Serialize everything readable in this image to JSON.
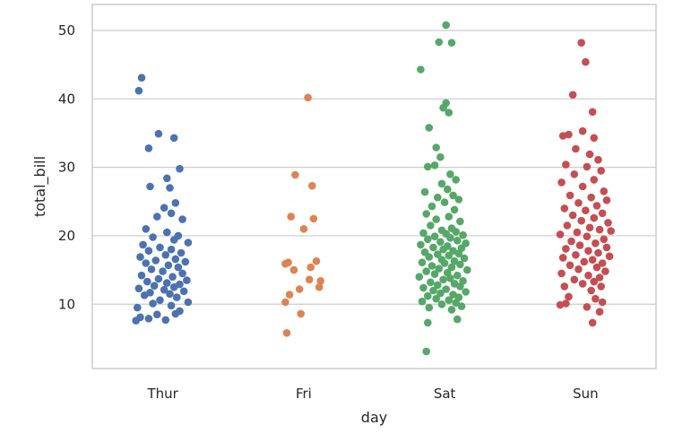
{
  "chart_data": {
    "type": "scatter",
    "title": "",
    "xlabel": "day",
    "ylabel": "total_bill",
    "categories": [
      "Thur",
      "Fri",
      "Sat",
      "Sun"
    ],
    "y_ticks": [
      10,
      20,
      30,
      40,
      50
    ],
    "ylim": [
      0.6,
      53.8
    ],
    "grid": "horizontal",
    "legend": "none",
    "series": [
      {
        "category": "Thur",
        "color": "#4c72b0",
        "points": [
          {
            "x": -0.15,
            "y": 43.1
          },
          {
            "x": -0.17,
            "y": 41.2
          },
          {
            "x": -0.03,
            "y": 34.9
          },
          {
            "x": 0.08,
            "y": 34.3
          },
          {
            "x": -0.1,
            "y": 32.8
          },
          {
            "x": 0.12,
            "y": 29.8
          },
          {
            "x": 0.03,
            "y": 28.4
          },
          {
            "x": -0.09,
            "y": 27.2
          },
          {
            "x": 0.05,
            "y": 27.0
          },
          {
            "x": 0.09,
            "y": 24.8
          },
          {
            "x": 0.01,
            "y": 24.1
          },
          {
            "x": 0.06,
            "y": 23.3
          },
          {
            "x": -0.04,
            "y": 22.8
          },
          {
            "x": 0.14,
            "y": 22.4
          },
          {
            "x": -0.12,
            "y": 21.0
          },
          {
            "x": 0.03,
            "y": 20.5
          },
          {
            "x": 0.11,
            "y": 20.0
          },
          {
            "x": -0.07,
            "y": 19.8
          },
          {
            "x": 0.08,
            "y": 19.4
          },
          {
            "x": 0.18,
            "y": 19.0
          },
          {
            "x": -0.14,
            "y": 18.7
          },
          {
            "x": -0.02,
            "y": 18.3
          },
          {
            "x": 0.06,
            "y": 18.0
          },
          {
            "x": -0.1,
            "y": 17.8
          },
          {
            "x": 0.13,
            "y": 17.5
          },
          {
            "x": 0.02,
            "y": 17.2
          },
          {
            "x": -0.16,
            "y": 16.9
          },
          {
            "x": 0.09,
            "y": 16.6
          },
          {
            "x": -0.05,
            "y": 16.4
          },
          {
            "x": 0.16,
            "y": 16.2
          },
          {
            "x": -0.12,
            "y": 16.0
          },
          {
            "x": 0.04,
            "y": 15.7
          },
          {
            "x": 0.11,
            "y": 15.4
          },
          {
            "x": -0.08,
            "y": 15.1
          },
          {
            "x": 0.0,
            "y": 14.8
          },
          {
            "x": 0.14,
            "y": 14.5
          },
          {
            "x": -0.15,
            "y": 14.2
          },
          {
            "x": 0.07,
            "y": 14.0
          },
          {
            "x": -0.03,
            "y": 13.7
          },
          {
            "x": 0.17,
            "y": 13.5
          },
          {
            "x": -0.11,
            "y": 13.3
          },
          {
            "x": 0.03,
            "y": 13.1
          },
          {
            "x": 0.12,
            "y": 12.9
          },
          {
            "x": -0.06,
            "y": 12.7
          },
          {
            "x": 0.08,
            "y": 12.5
          },
          {
            "x": -0.17,
            "y": 12.3
          },
          {
            "x": 0.01,
            "y": 12.1
          },
          {
            "x": 0.15,
            "y": 11.9
          },
          {
            "x": -0.09,
            "y": 11.7
          },
          {
            "x": 0.05,
            "y": 11.5
          },
          {
            "x": -0.13,
            "y": 11.3
          },
          {
            "x": 0.1,
            "y": 11.0
          },
          {
            "x": -0.02,
            "y": 10.6
          },
          {
            "x": 0.18,
            "y": 10.3
          },
          {
            "x": -0.07,
            "y": 10.1
          },
          {
            "x": 0.06,
            "y": 9.8
          },
          {
            "x": -0.18,
            "y": 9.5
          },
          {
            "x": 0.12,
            "y": 9.0
          },
          {
            "x": -0.04,
            "y": 8.5
          },
          {
            "x": 0.09,
            "y": 8.6
          },
          {
            "x": -0.16,
            "y": 8.1
          },
          {
            "x": -0.1,
            "y": 7.9
          },
          {
            "x": 0.02,
            "y": 7.7
          },
          {
            "x": -0.19,
            "y": 7.6
          }
        ]
      },
      {
        "category": "Fri",
        "color": "#dd8452",
        "points": [
          {
            "x": 0.03,
            "y": 40.2
          },
          {
            "x": -0.06,
            "y": 28.9
          },
          {
            "x": 0.06,
            "y": 27.3
          },
          {
            "x": -0.09,
            "y": 22.8
          },
          {
            "x": 0.07,
            "y": 22.5
          },
          {
            "x": 0.0,
            "y": 21.0
          },
          {
            "x": -0.11,
            "y": 16.1
          },
          {
            "x": -0.13,
            "y": 15.9
          },
          {
            "x": 0.09,
            "y": 16.3
          },
          {
            "x": 0.05,
            "y": 15.4
          },
          {
            "x": -0.07,
            "y": 15.0
          },
          {
            "x": 0.04,
            "y": 13.6
          },
          {
            "x": 0.12,
            "y": 13.4
          },
          {
            "x": 0.11,
            "y": 12.5
          },
          {
            "x": -0.03,
            "y": 12.2
          },
          {
            "x": -0.1,
            "y": 11.4
          },
          {
            "x": -0.13,
            "y": 10.3
          },
          {
            "x": -0.02,
            "y": 8.6
          },
          {
            "x": -0.12,
            "y": 5.8
          }
        ]
      },
      {
        "category": "Sat",
        "color": "#55a868",
        "points": [
          {
            "x": 0.01,
            "y": 50.8
          },
          {
            "x": -0.04,
            "y": 48.3
          },
          {
            "x": 0.05,
            "y": 48.2
          },
          {
            "x": -0.17,
            "y": 44.3
          },
          {
            "x": 0.01,
            "y": 39.4
          },
          {
            "x": -0.01,
            "y": 38.7
          },
          {
            "x": 0.03,
            "y": 38.0
          },
          {
            "x": -0.11,
            "y": 35.8
          },
          {
            "x": -0.06,
            "y": 32.9
          },
          {
            "x": -0.03,
            "y": 31.5
          },
          {
            "x": -0.12,
            "y": 30.1
          },
          {
            "x": -0.07,
            "y": 30.3
          },
          {
            "x": 0.04,
            "y": 29.0
          },
          {
            "x": 0.08,
            "y": 28.2
          },
          {
            "x": -0.02,
            "y": 27.6
          },
          {
            "x": 0.02,
            "y": 26.8
          },
          {
            "x": -0.14,
            "y": 26.4
          },
          {
            "x": 0.06,
            "y": 25.9
          },
          {
            "x": -0.05,
            "y": 25.6
          },
          {
            "x": 0.1,
            "y": 25.3
          },
          {
            "x": 0.0,
            "y": 24.9
          },
          {
            "x": -0.09,
            "y": 24.3
          },
          {
            "x": 0.07,
            "y": 23.8
          },
          {
            "x": -0.13,
            "y": 23.2
          },
          {
            "x": 0.03,
            "y": 22.8
          },
          {
            "x": -0.06,
            "y": 22.4
          },
          {
            "x": 0.11,
            "y": 22.1
          },
          {
            "x": -0.1,
            "y": 21.5
          },
          {
            "x": 0.05,
            "y": 21.1
          },
          {
            "x": -0.02,
            "y": 20.8
          },
          {
            "x": 0.08,
            "y": 20.6
          },
          {
            "x": -0.15,
            "y": 20.4
          },
          {
            "x": 0.01,
            "y": 20.3
          },
          {
            "x": 0.13,
            "y": 20.1
          },
          {
            "x": -0.07,
            "y": 19.9
          },
          {
            "x": 0.04,
            "y": 19.7
          },
          {
            "x": -0.12,
            "y": 19.5
          },
          {
            "x": 0.09,
            "y": 19.3
          },
          {
            "x": -0.03,
            "y": 19.1
          },
          {
            "x": 0.15,
            "y": 18.9
          },
          {
            "x": -0.17,
            "y": 18.7
          },
          {
            "x": 0.02,
            "y": 18.5
          },
          {
            "x": -0.08,
            "y": 18.3
          },
          {
            "x": 0.12,
            "y": 18.2
          },
          {
            "x": -0.01,
            "y": 18.0
          },
          {
            "x": 0.06,
            "y": 17.8
          },
          {
            "x": -0.14,
            "y": 17.6
          },
          {
            "x": 0.1,
            "y": 17.4
          },
          {
            "x": -0.05,
            "y": 17.3
          },
          {
            "x": 0.03,
            "y": 17.1
          },
          {
            "x": -0.11,
            "y": 16.9
          },
          {
            "x": 0.14,
            "y": 16.7
          },
          {
            "x": -0.02,
            "y": 16.5
          },
          {
            "x": 0.07,
            "y": 16.3
          },
          {
            "x": -0.16,
            "y": 16.1
          },
          {
            "x": 0.0,
            "y": 16.0
          },
          {
            "x": 0.11,
            "y": 15.8
          },
          {
            "x": -0.09,
            "y": 15.6
          },
          {
            "x": 0.05,
            "y": 15.4
          },
          {
            "x": -0.04,
            "y": 15.2
          },
          {
            "x": 0.16,
            "y": 15.0
          },
          {
            "x": -0.13,
            "y": 14.8
          },
          {
            "x": 0.02,
            "y": 14.6
          },
          {
            "x": -0.07,
            "y": 14.4
          },
          {
            "x": 0.09,
            "y": 14.2
          },
          {
            "x": -0.18,
            "y": 14.0
          },
          {
            "x": 0.04,
            "y": 13.8
          },
          {
            "x": -0.01,
            "y": 13.6
          },
          {
            "x": 0.13,
            "y": 13.4
          },
          {
            "x": -0.1,
            "y": 13.2
          },
          {
            "x": 0.07,
            "y": 13.0
          },
          {
            "x": -0.05,
            "y": 12.8
          },
          {
            "x": 0.11,
            "y": 12.6
          },
          {
            "x": -0.15,
            "y": 12.4
          },
          {
            "x": 0.01,
            "y": 12.2
          },
          {
            "x": -0.08,
            "y": 12.0
          },
          {
            "x": 0.15,
            "y": 11.8
          },
          {
            "x": -0.03,
            "y": 11.6
          },
          {
            "x": 0.06,
            "y": 11.4
          },
          {
            "x": -0.12,
            "y": 11.2
          },
          {
            "x": 0.1,
            "y": 11.0
          },
          {
            "x": -0.06,
            "y": 10.8
          },
          {
            "x": 0.03,
            "y": 10.6
          },
          {
            "x": -0.16,
            "y": 10.4
          },
          {
            "x": 0.08,
            "y": 10.2
          },
          {
            "x": -0.02,
            "y": 10.0
          },
          {
            "x": 0.12,
            "y": 9.7
          },
          {
            "x": -0.11,
            "y": 9.5
          },
          {
            "x": 0.05,
            "y": 9.2
          },
          {
            "x": 0.09,
            "y": 7.8
          },
          {
            "x": -0.12,
            "y": 7.3
          },
          {
            "x": -0.13,
            "y": 3.1
          }
        ]
      },
      {
        "category": "Sun",
        "color": "#c44e52",
        "points": [
          {
            "x": -0.03,
            "y": 48.2
          },
          {
            "x": 0.0,
            "y": 45.4
          },
          {
            "x": -0.09,
            "y": 40.6
          },
          {
            "x": 0.05,
            "y": 38.1
          },
          {
            "x": -0.02,
            "y": 35.3
          },
          {
            "x": -0.12,
            "y": 34.8
          },
          {
            "x": -0.16,
            "y": 34.6
          },
          {
            "x": 0.06,
            "y": 34.3
          },
          {
            "x": -0.07,
            "y": 32.7
          },
          {
            "x": 0.03,
            "y": 31.9
          },
          {
            "x": 0.09,
            "y": 31.1
          },
          {
            "x": -0.14,
            "y": 30.4
          },
          {
            "x": 0.01,
            "y": 30.1
          },
          {
            "x": 0.11,
            "y": 29.5
          },
          {
            "x": -0.08,
            "y": 29.0
          },
          {
            "x": 0.06,
            "y": 28.2
          },
          {
            "x": -0.17,
            "y": 27.8
          },
          {
            "x": -0.02,
            "y": 27.2
          },
          {
            "x": 0.13,
            "y": 26.5
          },
          {
            "x": -0.11,
            "y": 25.9
          },
          {
            "x": 0.04,
            "y": 25.6
          },
          {
            "x": 0.15,
            "y": 25.2
          },
          {
            "x": -0.05,
            "y": 24.8
          },
          {
            "x": 0.08,
            "y": 24.4
          },
          {
            "x": -0.15,
            "y": 24.0
          },
          {
            "x": 0.0,
            "y": 23.7
          },
          {
            "x": 0.12,
            "y": 23.3
          },
          {
            "x": -0.09,
            "y": 23.0
          },
          {
            "x": 0.06,
            "y": 22.6
          },
          {
            "x": -0.03,
            "y": 22.2
          },
          {
            "x": 0.16,
            "y": 21.9
          },
          {
            "x": -0.13,
            "y": 21.5
          },
          {
            "x": 0.03,
            "y": 21.2
          },
          {
            "x": 0.1,
            "y": 20.9
          },
          {
            "x": -0.06,
            "y": 20.5
          },
          {
            "x": 0.18,
            "y": 20.7
          },
          {
            "x": -0.18,
            "y": 20.2
          },
          {
            "x": 0.01,
            "y": 19.9
          },
          {
            "x": 0.13,
            "y": 19.5
          },
          {
            "x": -0.1,
            "y": 19.2
          },
          {
            "x": 0.07,
            "y": 18.9
          },
          {
            "x": -0.04,
            "y": 18.6
          },
          {
            "x": 0.15,
            "y": 18.3
          },
          {
            "x": -0.14,
            "y": 18.1
          },
          {
            "x": 0.02,
            "y": 17.8
          },
          {
            "x": 0.09,
            "y": 17.5
          },
          {
            "x": -0.07,
            "y": 17.2
          },
          {
            "x": 0.17,
            "y": 17.0
          },
          {
            "x": -0.16,
            "y": 16.8
          },
          {
            "x": 0.05,
            "y": 16.5
          },
          {
            "x": -0.01,
            "y": 16.2
          },
          {
            "x": 0.12,
            "y": 16.0
          },
          {
            "x": -0.11,
            "y": 15.7
          },
          {
            "x": 0.08,
            "y": 15.4
          },
          {
            "x": -0.05,
            "y": 15.1
          },
          {
            "x": 0.14,
            "y": 14.8
          },
          {
            "x": -0.17,
            "y": 14.5
          },
          {
            "x": 0.02,
            "y": 14.2
          },
          {
            "x": 0.1,
            "y": 13.9
          },
          {
            "x": -0.08,
            "y": 13.6
          },
          {
            "x": 0.06,
            "y": 13.3
          },
          {
            "x": -0.02,
            "y": 13.0
          },
          {
            "x": 0.11,
            "y": 12.6
          },
          {
            "x": -0.15,
            "y": 12.6
          },
          {
            "x": 0.04,
            "y": 12.0
          },
          {
            "x": -0.12,
            "y": 11.1
          },
          {
            "x": 0.07,
            "y": 10.8
          },
          {
            "x": 0.12,
            "y": 10.3
          },
          {
            "x": -0.14,
            "y": 10.1
          },
          {
            "x": -0.18,
            "y": 9.9
          },
          {
            "x": 0.01,
            "y": 9.6
          },
          {
            "x": 0.1,
            "y": 8.9
          },
          {
            "x": 0.05,
            "y": 7.3
          }
        ]
      }
    ]
  }
}
